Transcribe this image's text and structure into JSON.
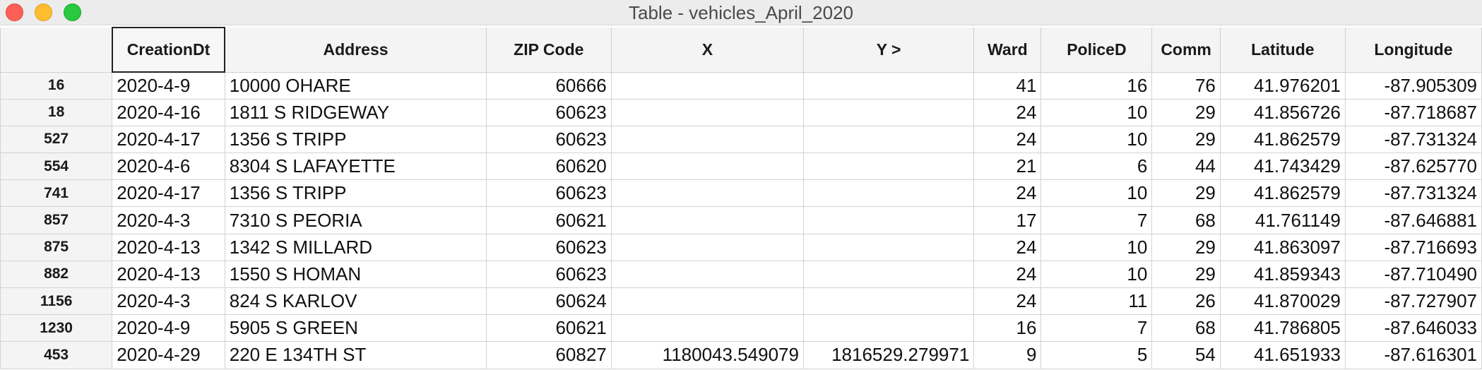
{
  "window": {
    "title": "Table - vehicles_April_2020"
  },
  "columns": [
    "CreationDt",
    "Address",
    "ZIP Code",
    "X",
    "Y >",
    "Ward",
    "PoliceD",
    "Comm",
    "Latitude",
    "Longitude"
  ],
  "rows": [
    {
      "id": "16",
      "cells": [
        "2020-4-9",
        "10000 OHARE",
        "60666",
        "",
        "",
        "41",
        "16",
        "76",
        "41.976201",
        "-87.905309"
      ]
    },
    {
      "id": "18",
      "cells": [
        "2020-4-16",
        "1811 S RIDGEWAY",
        "60623",
        "",
        "",
        "24",
        "10",
        "29",
        "41.856726",
        "-87.718687"
      ]
    },
    {
      "id": "527",
      "cells": [
        "2020-4-17",
        "1356 S TRIPP",
        "60623",
        "",
        "",
        "24",
        "10",
        "29",
        "41.862579",
        "-87.731324"
      ]
    },
    {
      "id": "554",
      "cells": [
        "2020-4-6",
        "8304 S LAFAYETTE",
        "60620",
        "",
        "",
        "21",
        "6",
        "44",
        "41.743429",
        "-87.625770"
      ]
    },
    {
      "id": "741",
      "cells": [
        "2020-4-17",
        "1356 S TRIPP",
        "60623",
        "",
        "",
        "24",
        "10",
        "29",
        "41.862579",
        "-87.731324"
      ]
    },
    {
      "id": "857",
      "cells": [
        "2020-4-3",
        "7310 S PEORIA",
        "60621",
        "",
        "",
        "17",
        "7",
        "68",
        "41.761149",
        "-87.646881"
      ]
    },
    {
      "id": "875",
      "cells": [
        "2020-4-13",
        "1342 S MILLARD",
        "60623",
        "",
        "",
        "24",
        "10",
        "29",
        "41.863097",
        "-87.716693"
      ]
    },
    {
      "id": "882",
      "cells": [
        "2020-4-13",
        "1550 S HOMAN",
        "60623",
        "",
        "",
        "24",
        "10",
        "29",
        "41.859343",
        "-87.710490"
      ]
    },
    {
      "id": "1156",
      "cells": [
        "2020-4-3",
        "824 S KARLOV",
        "60624",
        "",
        "",
        "24",
        "11",
        "26",
        "41.870029",
        "-87.727907"
      ]
    },
    {
      "id": "1230",
      "cells": [
        "2020-4-9",
        "5905 S GREEN",
        "60621",
        "",
        "",
        "16",
        "7",
        "68",
        "41.786805",
        "-87.646033"
      ]
    },
    {
      "id": "453",
      "cells": [
        "2020-4-29",
        "220 E 134TH ST",
        "60827",
        "1180043.549079",
        "1816529.279971",
        "9",
        "5",
        "54",
        "41.651933",
        "-87.616301"
      ]
    }
  ],
  "colors": {
    "close": "#fe5f57",
    "minimize": "#febc2e",
    "maximize": "#28c840"
  }
}
